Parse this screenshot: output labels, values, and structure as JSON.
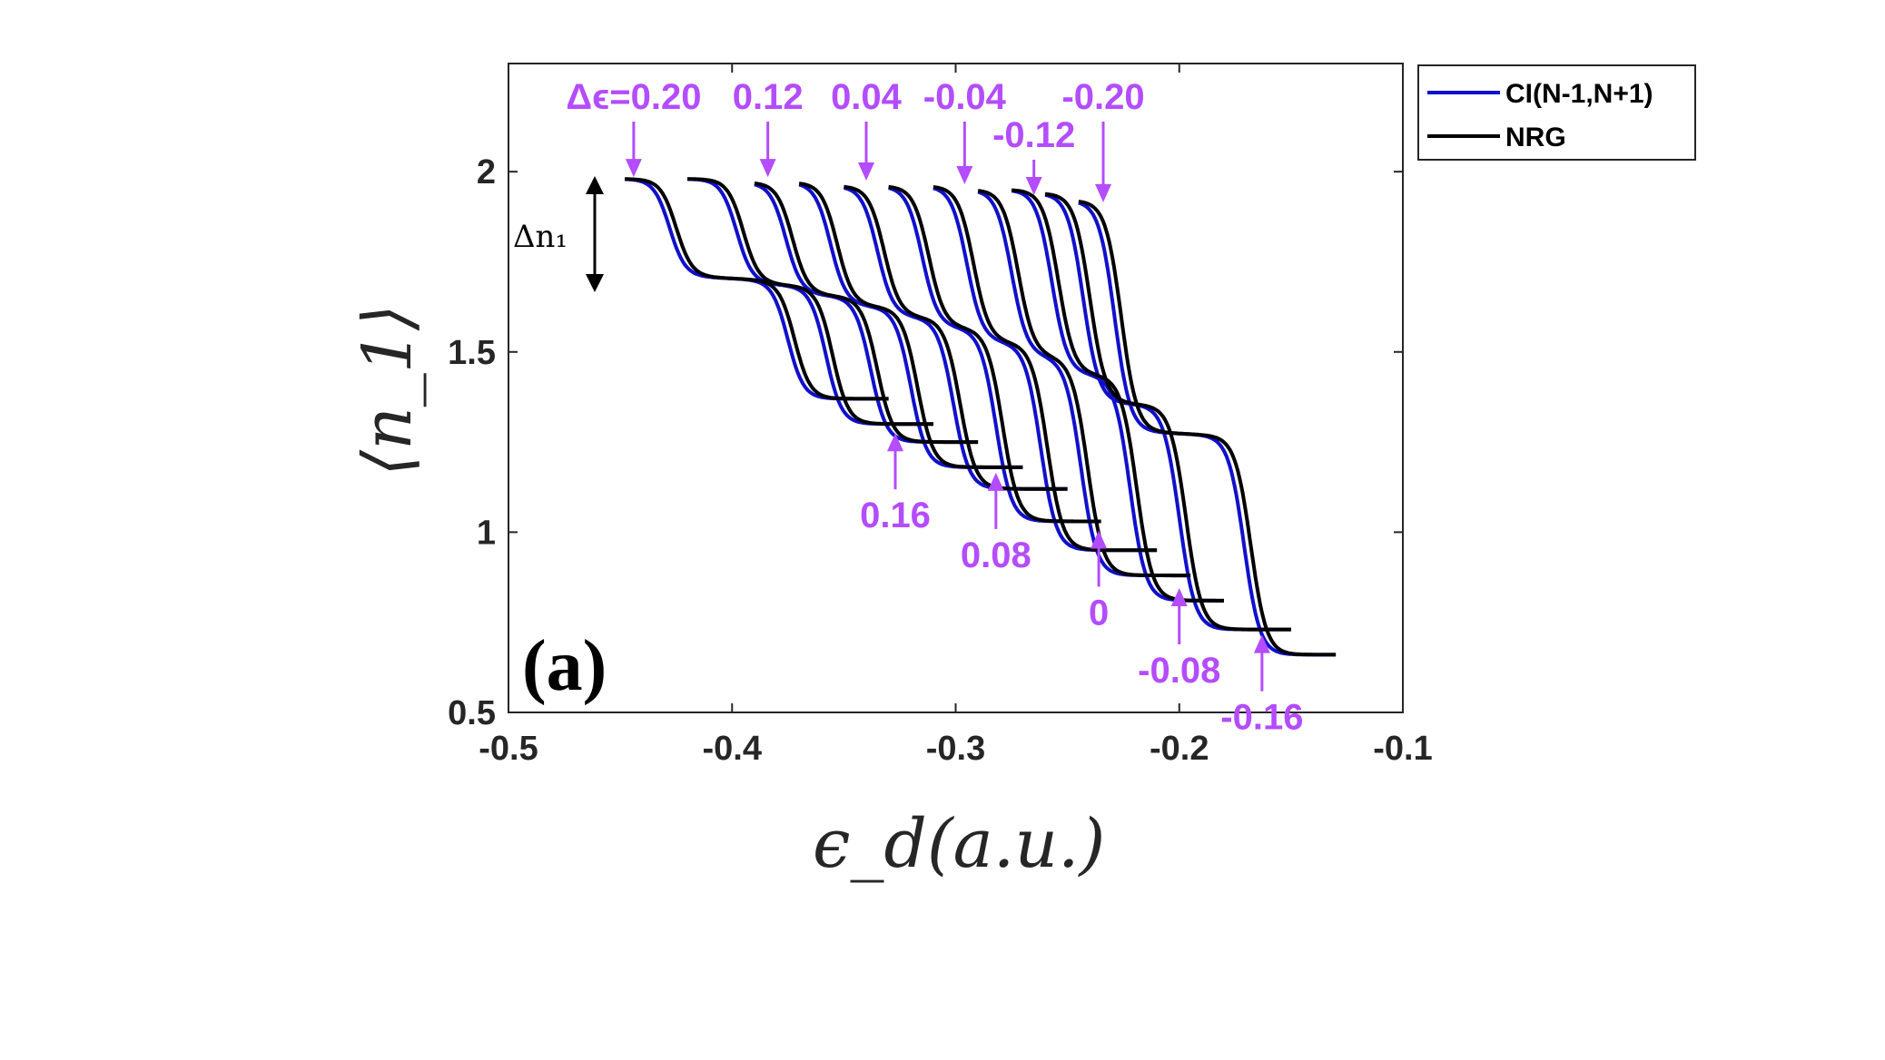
{
  "colors": {
    "ci": "#1010cc",
    "nrg": "#000000",
    "annotation": "#b44cff",
    "axis": "#262626"
  },
  "chart_data": {
    "type": "line",
    "xlabel": "ϵ_d(a.u.)",
    "ylabel": "⟨n_1⟩",
    "xlim": [
      -0.5,
      -0.1
    ],
    "ylim": [
      0.5,
      2.3
    ],
    "xticks": [
      "-0.5",
      "-0.4",
      "-0.3",
      "-0.2",
      "-0.1"
    ],
    "yticks": [
      "0.5",
      "1",
      "1.5",
      "2"
    ],
    "panel_label": "(a)",
    "legend": {
      "placement": "outside-top-right",
      "entries": [
        "CI(N-1,N+1)",
        "NRG"
      ]
    },
    "delta_n_label": "Δn₁",
    "series_descr": "Each Δϵ curve: two steps from ~1.98 down; Δϵ = 0.20 … -0.20 in 0.04 steps; blue = CI(N-1,N+1), black = NRG",
    "curves": [
      {
        "de": "0.20",
        "x0": -0.448,
        "x1": -0.33,
        "y0": 1.98,
        "step1": -0.425,
        "plateau": 1.71,
        "step2": -0.372,
        "end": 1.37,
        "ci_shift": -0.003
      },
      {
        "de": "0.16",
        "x0": -0.42,
        "x1": -0.31,
        "y0": 1.98,
        "step1": -0.395,
        "plateau": 1.69,
        "step2": -0.355,
        "end": 1.3,
        "ci_shift": -0.003
      },
      {
        "de": "0.12",
        "x0": -0.39,
        "x1": -0.29,
        "y0": 1.97,
        "step1": -0.373,
        "plateau": 1.66,
        "step2": -0.335,
        "end": 1.25,
        "ci_shift": -0.003
      },
      {
        "de": "0.08",
        "x0": -0.37,
        "x1": -0.27,
        "y0": 1.97,
        "step1": -0.353,
        "plateau": 1.63,
        "step2": -0.317,
        "end": 1.18,
        "ci_shift": -0.003
      },
      {
        "de": "0.04",
        "x0": -0.35,
        "x1": -0.25,
        "y0": 1.96,
        "step1": -0.332,
        "plateau": 1.6,
        "step2": -0.298,
        "end": 1.12,
        "ci_shift": -0.003
      },
      {
        "de": "0",
        "x0": -0.33,
        "x1": -0.235,
        "y0": 1.96,
        "step1": -0.312,
        "plateau": 1.57,
        "step2": -0.279,
        "end": 1.03,
        "ci_shift": -0.003
      },
      {
        "de": "-0.04",
        "x0": -0.31,
        "x1": -0.21,
        "y0": 1.96,
        "step1": -0.292,
        "plateau": 1.53,
        "step2": -0.259,
        "end": 0.95,
        "ci_shift": -0.003
      },
      {
        "de": "-0.08",
        "x0": -0.29,
        "x1": -0.195,
        "y0": 1.95,
        "step1": -0.272,
        "plateau": 1.49,
        "step2": -0.241,
        "end": 0.88,
        "ci_shift": -0.003
      },
      {
        "de": "-0.12",
        "x0": -0.275,
        "x1": -0.18,
        "y0": 1.95,
        "step1": -0.254,
        "plateau": 1.44,
        "step2": -0.219,
        "end": 0.81,
        "ci_shift": -0.003
      },
      {
        "de": "-0.16",
        "x0": -0.26,
        "x1": -0.15,
        "y0": 1.94,
        "step1": -0.24,
        "plateau": 1.36,
        "step2": -0.197,
        "end": 0.73,
        "ci_shift": -0.003
      },
      {
        "de": "-0.20",
        "x0": -0.245,
        "x1": -0.13,
        "y0": 1.92,
        "step1": -0.226,
        "plateau": 1.28,
        "step2": -0.168,
        "end": 0.66,
        "ci_shift": -0.003
      }
    ],
    "annotations_top": [
      {
        "text": "Δϵ=0.20",
        "arrow_x": -0.444,
        "arrow_y": 1.97
      },
      {
        "text": "0.12",
        "arrow_x": -0.384,
        "arrow_y": 1.97
      },
      {
        "text": "0.04",
        "arrow_x": -0.34,
        "arrow_y": 1.96
      },
      {
        "text": "-0.04",
        "arrow_x": -0.296,
        "arrow_y": 1.95
      },
      {
        "text": "-0.12",
        "arrow_x": -0.265,
        "arrow_y": 1.92
      },
      {
        "text": "-0.20",
        "arrow_x": -0.234,
        "arrow_y": 1.9
      }
    ],
    "annotations_bottom": [
      {
        "text": "0.16",
        "arrow_x": -0.327,
        "arrow_y": 1.29
      },
      {
        "text": "0.08",
        "arrow_x": -0.282,
        "arrow_y": 1.18
      },
      {
        "text": "0",
        "arrow_x": -0.236,
        "arrow_y": 1.02
      },
      {
        "text": "-0.08",
        "arrow_x": -0.2,
        "arrow_y": 0.86
      },
      {
        "text": "-0.16",
        "arrow_x": -0.163,
        "arrow_y": 0.73
      }
    ]
  }
}
